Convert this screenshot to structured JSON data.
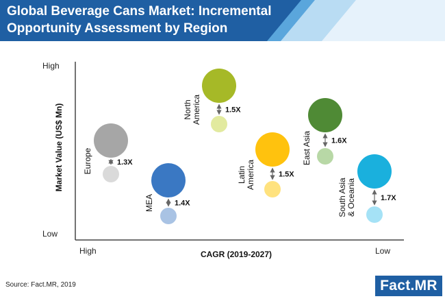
{
  "header": {
    "title_line1": "Global Beverage Cans Market: Incremental",
    "title_line2": "Opportunity Assessment by Region"
  },
  "chart_data": {
    "type": "bubble",
    "xlabel": "CAGR (2019-2027)",
    "ylabel": "Market Value (US$ Mn)",
    "x_tick_labels": {
      "left": "High",
      "right": "Low"
    },
    "y_tick_labels": {
      "top": "High",
      "bottom": "Low"
    },
    "regions": [
      {
        "name": "Europe",
        "growth": "1.3X",
        "color": "#a6a6a6",
        "light_color": "#dadada"
      },
      {
        "name": "MEA",
        "growth": "1.4X",
        "color": "#3a78c3",
        "light_color": "#a9c3e4"
      },
      {
        "name": "North America",
        "name_lines": [
          "North",
          "America"
        ],
        "growth": "1.5X",
        "color": "#a6b927",
        "light_color": "#e2ea9f"
      },
      {
        "name": "Latin America",
        "name_lines": [
          "Latin",
          "America"
        ],
        "growth": "1.5X",
        "color": "#ffc20e",
        "light_color": "#ffe27e"
      },
      {
        "name": "East Asia",
        "growth": "1.6X",
        "color": "#4f8a35",
        "light_color": "#b8d8a6"
      },
      {
        "name": "South Asia & Oceania",
        "name_lines": [
          "South Asia",
          "& Oceania"
        ],
        "growth": "1.7X",
        "color": "#1ab0dd",
        "light_color": "#a5e2f6"
      }
    ]
  },
  "footer": {
    "source": "Source: Fact.MR, 2019",
    "logo_a": "Fact.",
    "logo_b": "MR"
  },
  "colors": {
    "banner_dark": "#1f5fa3",
    "banner_mid": "#5aa6dc",
    "banner_light": "#b9dcf3",
    "axis": "#444444"
  }
}
